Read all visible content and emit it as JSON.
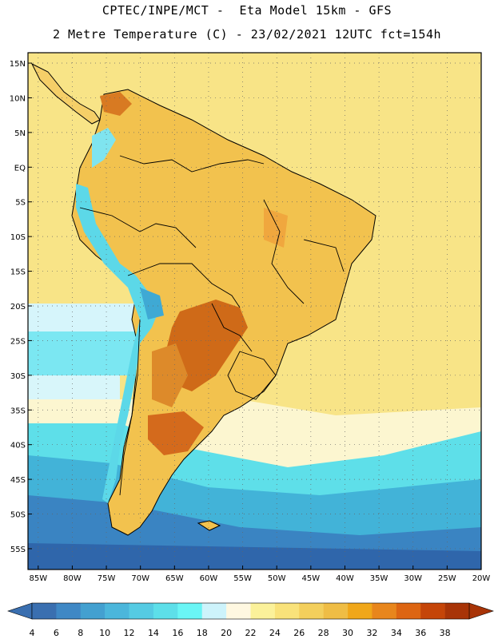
{
  "header": {
    "line1": "CPTEC/INPE/MCT -  Eta Model 15km - GFS",
    "line2": "2 Metre Temperature (C) - 23/02/2021 12UTC fct=154h"
  },
  "map": {
    "lat_labels": [
      "15N",
      "10N",
      "5N",
      "EQ",
      "5S",
      "10S",
      "15S",
      "20S",
      "25S",
      "30S",
      "35S",
      "40S",
      "45S",
      "50S",
      "55S"
    ],
    "lon_labels": [
      "85W",
      "80W",
      "75W",
      "70W",
      "65W",
      "60W",
      "55W",
      "50W",
      "45W",
      "40W",
      "35W",
      "30W",
      "25W",
      "20W"
    ],
    "lat_range": [
      -58,
      16.5
    ],
    "lon_range": [
      -86.5,
      -20
    ],
    "variable": "2 Metre Temperature",
    "units": "C"
  },
  "colorbar": {
    "labels": [
      "4",
      "6",
      "8",
      "10",
      "12",
      "14",
      "16",
      "18",
      "20",
      "22",
      "24",
      "26",
      "28",
      "30",
      "32",
      "34",
      "36",
      "38"
    ],
    "colors": [
      "#3a6fb0",
      "#3f88c5",
      "#43a0d0",
      "#4bb6db",
      "#55cbe3",
      "#5ddfe9",
      "#6af5f5",
      "#cdf3fb",
      "#fff8e1",
      "#fbf19a",
      "#f9e27a",
      "#f3cf5c",
      "#efbd45",
      "#f0a71a",
      "#e8861c",
      "#dd6512",
      "#c54508",
      "#a83407"
    ]
  }
}
